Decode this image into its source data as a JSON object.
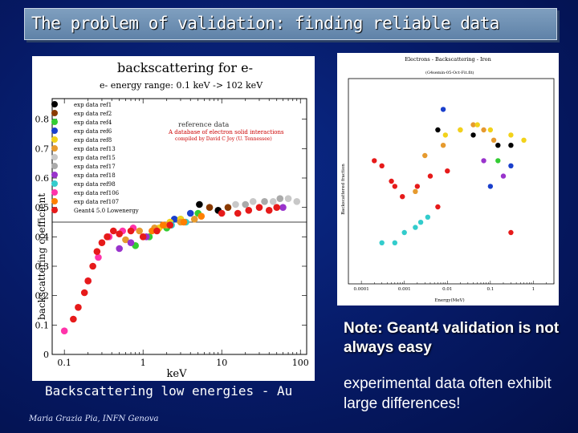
{
  "slide": {
    "title": "The problem of validation: finding reliable data",
    "caption_left": "Backscattering low energies - Au",
    "author": "Maria Grazia Pia, INFN Genova",
    "note": "Note: Geant4 validation is not always easy",
    "comment": "experimental data often exhibit large differences!"
  },
  "chart_data": [
    {
      "type": "scatter",
      "title": "backscattering for e-",
      "subtitle": "e- energy range: 0.1 keV -> 102  keV",
      "xlabel": "keV",
      "ylabel": "backscattering coefficient",
      "xscale": "log",
      "xlim": [
        0.07,
        120
      ],
      "ylim": [
        0,
        0.87
      ],
      "x_ticks": [
        "0.1",
        "1",
        "10",
        "100"
      ],
      "y_ticks": [
        "0",
        "0.1",
        "0.2",
        "0.3",
        "0.4",
        "0.5",
        "0.6",
        "0.7",
        "0.8"
      ],
      "legend_position": "top-left",
      "annotation": {
        "heading": "reference data",
        "line1": "A database of electron solid interactions",
        "line2": "compiled by David C Joy (U. Tennessee)"
      },
      "series": [
        {
          "name": "exp data ref1",
          "color": "#000000",
          "points": [
            [
              5.2,
              0.51
            ],
            [
              9,
              0.49
            ]
          ]
        },
        {
          "name": "exp data ref2",
          "color": "#8a3a00",
          "points": [
            [
              7,
              0.5
            ],
            [
              12,
              0.5
            ]
          ]
        },
        {
          "name": "exp data ref4",
          "color": "#33cc33",
          "points": [
            [
              0.8,
              0.37
            ],
            [
              1.2,
              0.4
            ],
            [
              2,
              0.43
            ],
            [
              3,
              0.46
            ],
            [
              5,
              0.48
            ]
          ]
        },
        {
          "name": "exp data ref6",
          "color": "#1a3fcc",
          "points": [
            [
              2.5,
              0.46
            ],
            [
              4,
              0.48
            ]
          ]
        },
        {
          "name": "exp data ref8",
          "color": "#f2d21a",
          "points": [
            [
              1.6,
              0.43
            ],
            [
              2.2,
              0.45
            ],
            [
              3,
              0.46
            ]
          ]
        },
        {
          "name": "exp data ref13",
          "color": "#e69a2e",
          "points": [
            [
              0.6,
              0.39
            ],
            [
              0.9,
              0.42
            ],
            [
              1.4,
              0.43
            ],
            [
              2,
              0.44
            ],
            [
              3,
              0.45
            ],
            [
              4.5,
              0.46
            ]
          ]
        },
        {
          "name": "exp data ref15",
          "color": "#c8c8c8",
          "points": [
            [
              15,
              0.51
            ],
            [
              25,
              0.52
            ],
            [
              45,
              0.52
            ],
            [
              70,
              0.53
            ],
            [
              90,
              0.52
            ]
          ]
        },
        {
          "name": "exp data ref17",
          "color": "#aaaaaa",
          "points": [
            [
              20,
              0.51
            ],
            [
              35,
              0.52
            ],
            [
              55,
              0.53
            ]
          ]
        },
        {
          "name": "exp data ref18",
          "color": "#9933cc",
          "points": [
            [
              0.5,
              0.36
            ],
            [
              0.7,
              0.38
            ],
            [
              1.1,
              0.4
            ],
            [
              60,
              0.5
            ]
          ]
        },
        {
          "name": "exp data ref98",
          "color": "#33cccc",
          "points": [
            [
              2.3,
              0.44
            ],
            [
              3.5,
              0.45
            ]
          ]
        },
        {
          "name": "exp data ref106",
          "color": "#ff33aa",
          "points": [
            [
              0.1,
              0.08
            ],
            [
              0.2,
              0.25
            ],
            [
              0.27,
              0.33
            ],
            [
              0.37,
              0.4
            ],
            [
              0.55,
              0.42
            ],
            [
              0.75,
              0.43
            ]
          ]
        },
        {
          "name": "exp data ref107",
          "color": "#ff7f00",
          "points": [
            [
              1.3,
              0.42
            ],
            [
              1.8,
              0.44
            ],
            [
              3.3,
              0.45
            ],
            [
              5.5,
              0.47
            ]
          ]
        },
        {
          "name": "Geant4 5.0 Lowenergy",
          "color": "#e61a1a",
          "points": [
            [
              0.13,
              0.12
            ],
            [
              0.15,
              0.16
            ],
            [
              0.18,
              0.21
            ],
            [
              0.2,
              0.25
            ],
            [
              0.23,
              0.3
            ],
            [
              0.26,
              0.35
            ],
            [
              0.3,
              0.38
            ],
            [
              0.35,
              0.4
            ],
            [
              0.42,
              0.42
            ],
            [
              0.5,
              0.41
            ],
            [
              0.7,
              0.42
            ],
            [
              1.0,
              0.4
            ],
            [
              1.5,
              0.42
            ],
            [
              2.2,
              0.44
            ],
            [
              10,
              0.48
            ],
            [
              16,
              0.48
            ],
            [
              22,
              0.49
            ],
            [
              30,
              0.5
            ],
            [
              40,
              0.49
            ],
            [
              50,
              0.5
            ]
          ]
        }
      ]
    },
    {
      "type": "scatter",
      "title": "Electrons - Backscattering - Iron",
      "subtitle": "(G4semin-05-Oct-Fit.fit)",
      "xlabel": "Energy(MeV)",
      "ylabel": "Backscattered fraction",
      "xscale": "log",
      "xlim": [
        5e-05,
        3
      ],
      "ylim": [
        0,
        0.4
      ],
      "x_ticks": [
        "0.0001",
        "0.001",
        "0.01",
        "0.1",
        "1"
      ],
      "series": [
        {
          "color": "#e61a1a",
          "points": [
            [
              0.0002,
              0.24
            ],
            [
              0.0003,
              0.23
            ],
            [
              0.0005,
              0.2
            ],
            [
              0.0006,
              0.19
            ],
            [
              0.0009,
              0.17
            ],
            [
              0.002,
              0.19
            ],
            [
              0.004,
              0.21
            ],
            [
              0.006,
              0.15
            ],
            [
              0.01,
              0.22
            ],
            [
              0.3,
              0.1
            ]
          ]
        },
        {
          "color": "#33cccc",
          "points": [
            [
              0.0003,
              0.08
            ],
            [
              0.0006,
              0.08
            ],
            [
              0.001,
              0.1
            ],
            [
              0.0018,
              0.11
            ],
            [
              0.0024,
              0.12
            ],
            [
              0.0035,
              0.13
            ]
          ]
        },
        {
          "color": "#e69a2e",
          "points": [
            [
              0.0018,
              0.18
            ],
            [
              0.003,
              0.25
            ],
            [
              0.008,
              0.27
            ],
            [
              0.02,
              0.3
            ],
            [
              0.04,
              0.31
            ],
            [
              0.07,
              0.3
            ],
            [
              0.12,
              0.28
            ]
          ]
        },
        {
          "color": "#f2d21a",
          "points": [
            [
              0.009,
              0.29
            ],
            [
              0.02,
              0.3
            ],
            [
              0.05,
              0.31
            ],
            [
              0.1,
              0.3
            ],
            [
              0.3,
              0.29
            ],
            [
              0.6,
              0.28
            ]
          ]
        },
        {
          "color": "#000000",
          "points": [
            [
              0.006,
              0.3
            ],
            [
              0.04,
              0.29
            ],
            [
              0.15,
              0.27
            ],
            [
              0.3,
              0.27
            ]
          ]
        },
        {
          "color": "#1a3fcc",
          "points": [
            [
              0.008,
              0.34
            ],
            [
              0.1,
              0.19
            ],
            [
              0.3,
              0.23
            ]
          ]
        },
        {
          "color": "#9933cc",
          "points": [
            [
              0.07,
              0.24
            ],
            [
              0.2,
              0.21
            ]
          ]
        },
        {
          "color": "#33cc33",
          "points": [
            [
              0.15,
              0.24
            ]
          ]
        }
      ]
    }
  ]
}
